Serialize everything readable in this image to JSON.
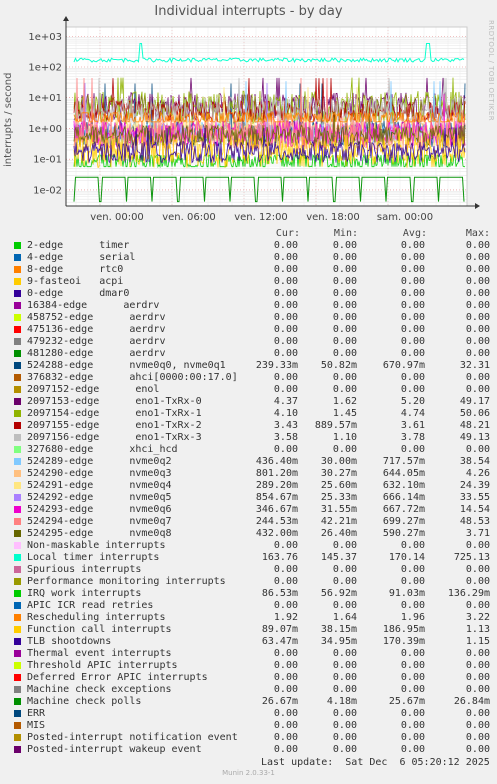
{
  "title": "Individual interrupts - by day",
  "side_label": "RRDTOOL / TOBI OETIKER",
  "footer": "Last update:  Sat Dec  6 05:20:12 2025",
  "munin": "Munin 2.0.33-1",
  "columns": [
    "Cur:",
    "Min:",
    "Avg:",
    "Max:"
  ],
  "chart_data": {
    "type": "line",
    "ylabel": "interrupts / second",
    "yscale": "log",
    "ylim": [
      0.003,
      2000
    ],
    "yticks": [
      "1e-02",
      "1e-01",
      "1e+00",
      "1e+01",
      "1e+02",
      "1e+03"
    ],
    "xticks": [
      "ven. 00:00",
      "ven. 06:00",
      "ven. 12:00",
      "ven. 18:00",
      "sam. 00:00"
    ],
    "grid": true,
    "series": [
      {
        "name": "2-edge      timer",
        "color": "#00cc00",
        "values": [
          "0.00",
          "0.00",
          "0.00",
          "0.00"
        ]
      },
      {
        "name": "4-edge      serial",
        "color": "#0066b3",
        "values": [
          "0.00",
          "0.00",
          "0.00",
          "0.00"
        ]
      },
      {
        "name": "8-edge      rtc0",
        "color": "#ff8000",
        "values": [
          "0.00",
          "0.00",
          "0.00",
          "0.00"
        ]
      },
      {
        "name": "9-fasteoi   acpi",
        "color": "#ffcc00",
        "values": [
          "0.00",
          "0.00",
          "0.00",
          "0.00"
        ]
      },
      {
        "name": "0-edge      dmar0",
        "color": "#330099",
        "values": [
          "0.00",
          "0.00",
          "0.00",
          "0.00"
        ]
      },
      {
        "name": "16384-edge      aerdrv",
        "color": "#990099",
        "values": [
          "0.00",
          "0.00",
          "0.00",
          "0.00"
        ]
      },
      {
        "name": "458752-edge      aerdrv",
        "color": "#ccff00",
        "values": [
          "0.00",
          "0.00",
          "0.00",
          "0.00"
        ]
      },
      {
        "name": "475136-edge      aerdrv",
        "color": "#ff0000",
        "values": [
          "0.00",
          "0.00",
          "0.00",
          "0.00"
        ]
      },
      {
        "name": "479232-edge      aerdrv",
        "color": "#808080",
        "values": [
          "0.00",
          "0.00",
          "0.00",
          "0.00"
        ]
      },
      {
        "name": "481280-edge      aerdrv",
        "color": "#008f00",
        "values": [
          "0.00",
          "0.00",
          "0.00",
          "0.00"
        ]
      },
      {
        "name": "524288-edge      nvme0q0, nvme0q1",
        "color": "#00487d",
        "values": [
          "239.33m",
          "50.82m",
          "670.97m",
          "32.31"
        ]
      },
      {
        "name": "376832-edge      ahci[0000:00:17.0]",
        "color": "#b35a00",
        "values": [
          "0.00",
          "0.00",
          "0.00",
          "0.00"
        ]
      },
      {
        "name": "2097152-edge      enol",
        "color": "#b38f00",
        "values": [
          "0.00",
          "0.00",
          "0.00",
          "0.00"
        ]
      },
      {
        "name": "2097153-edge      eno1-TxRx-0",
        "color": "#6b006b",
        "values": [
          "4.37",
          "1.62",
          "5.20",
          "49.17"
        ]
      },
      {
        "name": "2097154-edge      eno1-TxRx-1",
        "color": "#8fb300",
        "values": [
          "4.10",
          "1.45",
          "4.74",
          "50.06"
        ]
      },
      {
        "name": "2097155-edge      eno1-TxRx-2",
        "color": "#b30000",
        "values": [
          "3.43",
          "889.57m",
          "3.61",
          "48.21"
        ]
      },
      {
        "name": "2097156-edge      eno1-TxRx-3",
        "color": "#bebebe",
        "values": [
          "3.58",
          "1.10",
          "3.78",
          "49.13"
        ]
      },
      {
        "name": "327680-edge      xhci_hcd",
        "color": "#80ff80",
        "values": [
          "0.00",
          "0.00",
          "0.00",
          "0.00"
        ]
      },
      {
        "name": "524289-edge      nvme0q2",
        "color": "#80c9ff",
        "values": [
          "436.40m",
          "30.00m",
          "717.57m",
          "38.54"
        ]
      },
      {
        "name": "524290-edge      nvme0q3",
        "color": "#ffc080",
        "values": [
          "801.20m",
          "30.27m",
          "644.05m",
          "4.26"
        ]
      },
      {
        "name": "524291-edge      nvme0q4",
        "color": "#ffe680",
        "values": [
          "289.20m",
          "25.60m",
          "632.10m",
          "24.39"
        ]
      },
      {
        "name": "524292-edge      nvme0q5",
        "color": "#aa80ff",
        "values": [
          "854.67m",
          "25.33m",
          "666.14m",
          "33.55"
        ]
      },
      {
        "name": "524293-edge      nvme0q6",
        "color": "#ee00cc",
        "values": [
          "346.67m",
          "31.55m",
          "667.72m",
          "14.54"
        ]
      },
      {
        "name": "524294-edge      nvme0q7",
        "color": "#ff8080",
        "values": [
          "244.53m",
          "42.21m",
          "699.27m",
          "48.53"
        ]
      },
      {
        "name": "524295-edge      nvme0q8",
        "color": "#666600",
        "values": [
          "432.00m",
          "26.40m",
          "590.27m",
          "3.71"
        ]
      },
      {
        "name": "Non-maskable interrupts",
        "color": "#ffbfff",
        "values": [
          "0.00",
          "0.00",
          "0.00",
          "0.00"
        ]
      },
      {
        "name": "Local timer interrupts",
        "color": "#00ffcc",
        "values": [
          "163.76",
          "145.37",
          "170.14",
          "725.13"
        ]
      },
      {
        "name": "Spurious interrupts",
        "color": "#cc6699",
        "values": [
          "0.00",
          "0.00",
          "0.00",
          "0.00"
        ]
      },
      {
        "name": "Performance monitoring interrupts",
        "color": "#999900",
        "values": [
          "0.00",
          "0.00",
          "0.00",
          "0.00"
        ]
      },
      {
        "name": "IRQ work interrupts",
        "color": "#00cc00",
        "values": [
          "86.53m",
          "56.92m",
          "91.03m",
          "136.29m"
        ]
      },
      {
        "name": "APIC ICR read retries",
        "color": "#0066b3",
        "values": [
          "0.00",
          "0.00",
          "0.00",
          "0.00"
        ]
      },
      {
        "name": "Rescheduling interrupts",
        "color": "#ff8000",
        "values": [
          "1.92",
          "1.64",
          "1.96",
          "3.22"
        ]
      },
      {
        "name": "Function call interrupts",
        "color": "#ffcc00",
        "values": [
          "89.07m",
          "38.15m",
          "186.95m",
          "1.13"
        ]
      },
      {
        "name": "TLB shootdowns",
        "color": "#330099",
        "values": [
          "63.47m",
          "34.95m",
          "170.39m",
          "1.15"
        ]
      },
      {
        "name": "Thermal event interrupts",
        "color": "#990099",
        "values": [
          "0.00",
          "0.00",
          "0.00",
          "0.00"
        ]
      },
      {
        "name": "Threshold APIC interrupts",
        "color": "#ccff00",
        "values": [
          "0.00",
          "0.00",
          "0.00",
          "0.00"
        ]
      },
      {
        "name": "Deferred Error APIC interrupts",
        "color": "#ff0000",
        "values": [
          "0.00",
          "0.00",
          "0.00",
          "0.00"
        ]
      },
      {
        "name": "Machine check exceptions",
        "color": "#808080",
        "values": [
          "0.00",
          "0.00",
          "0.00",
          "0.00"
        ]
      },
      {
        "name": "Machine check polls",
        "color": "#008f00",
        "values": [
          "26.67m",
          "4.18m",
          "25.67m",
          "26.84m"
        ]
      },
      {
        "name": "ERR",
        "color": "#00487d",
        "values": [
          "0.00",
          "0.00",
          "0.00",
          "0.00"
        ]
      },
      {
        "name": "MIS",
        "color": "#b35a00",
        "values": [
          "0.00",
          "0.00",
          "0.00",
          "0.00"
        ]
      },
      {
        "name": "Posted-interrupt notification event",
        "color": "#b38f00",
        "values": [
          "0.00",
          "0.00",
          "0.00",
          "0.00"
        ]
      },
      {
        "name": "Posted-interrupt wakeup event",
        "color": "#6b006b",
        "values": [
          "0.00",
          "0.00",
          "0.00",
          "0.00"
        ]
      }
    ]
  }
}
